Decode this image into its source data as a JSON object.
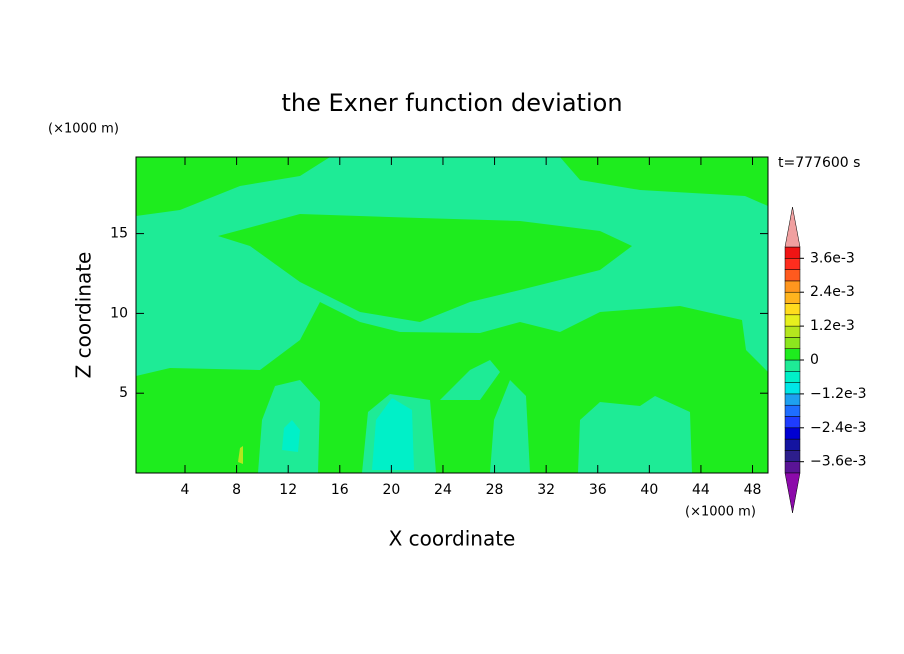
{
  "chart_data": {
    "type": "contour",
    "title": "the Exner function deviation",
    "x_label": "X coordinate",
    "y_label": "Z coordinate",
    "x_unit": "(×1000 m)",
    "y_unit": "(×1000 m)",
    "annotation": "t=777600 s",
    "xlim": [
      0.2,
      49.2
    ],
    "ylim": [
      0,
      19.8
    ],
    "xticks": [
      4,
      8,
      12,
      16,
      20,
      24,
      28,
      32,
      36,
      40,
      44,
      48
    ],
    "yticks": [
      5,
      10,
      15
    ],
    "colorbar": {
      "levels": [
        -0.004,
        -0.0036,
        -0.0032,
        -0.0028,
        -0.0024,
        -0.002,
        -0.0016,
        -0.0012,
        -0.0008,
        -0.0004,
        0,
        0.0004,
        0.0008,
        0.0012,
        0.0016,
        0.002,
        0.0024,
        0.0028,
        0.0032,
        0.0036,
        0.004
      ],
      "colors": [
        "#5a1496",
        "#2d1e8c",
        "#1414a0",
        "#0000d2",
        "#1e3cff",
        "#1e6eff",
        "#1ea0f0",
        "#00e6e6",
        "#00f0c8",
        "#1eeb96",
        "#1eec1e",
        "#8ce61e",
        "#b4e61e",
        "#e6f01e",
        "#ffdc1e",
        "#ffb41e",
        "#ff961e",
        "#ff5a1e",
        "#ff2d1e",
        "#f01414"
      ],
      "under_color": "#8c0aaa",
      "over_color": "#f0a0a0",
      "ticks": [
        {
          "value": 0.0036,
          "label": "3.6e-3"
        },
        {
          "value": 0.0024,
          "label": "2.4e-3"
        },
        {
          "value": 0.0012,
          "label": "1.2e-3"
        },
        0,
        {
          "value": -0.0012,
          "label": "−1.2e-3"
        },
        {
          "value": -0.0024,
          "label": "−2.4e-3"
        },
        {
          "value": -0.0036,
          "label": "−3.6e-3"
        }
      ]
    }
  }
}
